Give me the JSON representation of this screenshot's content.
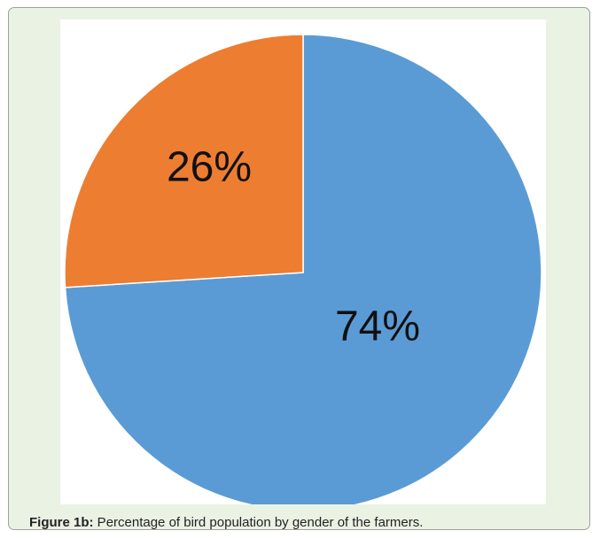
{
  "caption": {
    "label": "Figure 1b:",
    "text": " Percentage of bird population by gender of the farmers."
  },
  "chart_data": {
    "type": "pie",
    "title": "",
    "legend": "none",
    "slices": [
      {
        "label": "74%",
        "value": 74,
        "color": "#5b9bd5"
      },
      {
        "label": "26%",
        "value": 26,
        "color": "#ed7d31"
      }
    ]
  }
}
